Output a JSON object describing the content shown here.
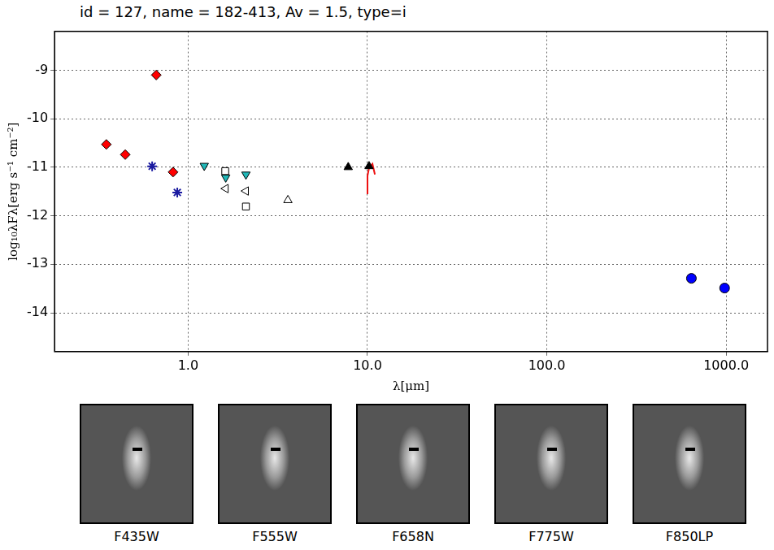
{
  "chart_data": {
    "type": "scatter",
    "title": "id = 127, name = 182-413, Av = 1.5, type=i",
    "x_label": "λ[μm]",
    "y_label": "log₁₀λFλ[erg s⁻¹ cm⁻²]",
    "log": "x",
    "grid": true,
    "xlim": [
      0.18,
      1700
    ],
    "xticks": [
      {
        "value": 1,
        "label": "1.0"
      },
      {
        "value": 10,
        "label": "10.0"
      },
      {
        "value": 100,
        "label": "100.0"
      },
      {
        "value": 1000,
        "label": "1000.0"
      }
    ],
    "ylim": [
      -14.8,
      -8.2
    ],
    "yticks": [
      -14,
      -13,
      -12,
      -11,
      -10,
      -9
    ],
    "series": [
      {
        "color": "#ff0000",
        "marker": "diamond",
        "x": [
          0.35,
          0.446,
          0.664,
          0.824
        ],
        "values": [
          -10.53,
          -10.74,
          -9.1,
          -11.1
        ]
      },
      {
        "color": "#1a1aa0",
        "marker": "star",
        "x": [
          0.63,
          0.87
        ],
        "values": [
          -10.98,
          -11.52
        ]
      },
      {
        "color": "#20b8b8",
        "marker": "triangle_down",
        "x": [
          1.23,
          1.62,
          2.1
        ],
        "values": [
          -10.97,
          -11.21,
          -11.15
        ]
      },
      {
        "color": "#ffffff",
        "marker": "square",
        "x": [
          1.61,
          2.1
        ],
        "values": [
          -11.08,
          -11.81
        ]
      },
      {
        "color": "#ffffff",
        "marker": "triangle_left",
        "x": [
          1.62,
          2.1
        ],
        "values": [
          -11.44,
          -11.49
        ]
      },
      {
        "color": "#ffffff",
        "marker": "triangle_up",
        "x": [
          3.6
        ],
        "values": [
          -11.68
        ]
      },
      {
        "color": "#000000",
        "marker": "triangle_up",
        "x": [
          7.81,
          10.2
        ],
        "values": [
          -11.0,
          -10.98
        ]
      },
      {
        "type": "line",
        "color": "#ee1111",
        "line_style": "solid",
        "x": [
          9.9,
          10.0,
          10.2,
          10.66,
          11.0
        ],
        "values": [
          -11.54,
          -11.18,
          -11.02,
          -10.93,
          -11.15
        ]
      },
      {
        "color": "#0000ff",
        "marker": "circle",
        "x": [
          640,
          980
        ],
        "values": [
          -13.29,
          -13.49
        ]
      }
    ]
  },
  "images": {
    "labels": [
      "F435W",
      "F555W",
      "F658N",
      "F775W",
      "F850LP"
    ]
  }
}
